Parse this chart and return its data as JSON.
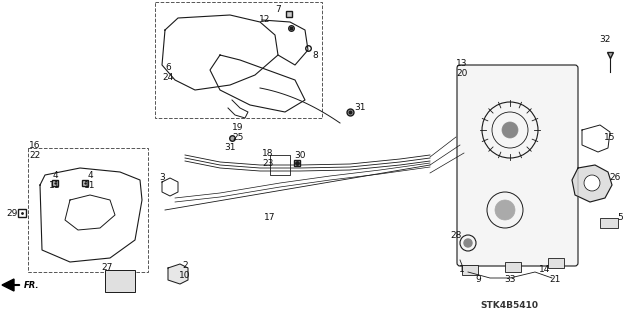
{
  "bg_color": "#ffffff",
  "diagram_code": "STK4B5410",
  "figsize": [
    6.4,
    3.19
  ],
  "dpi": 100,
  "image_data": "target_image"
}
